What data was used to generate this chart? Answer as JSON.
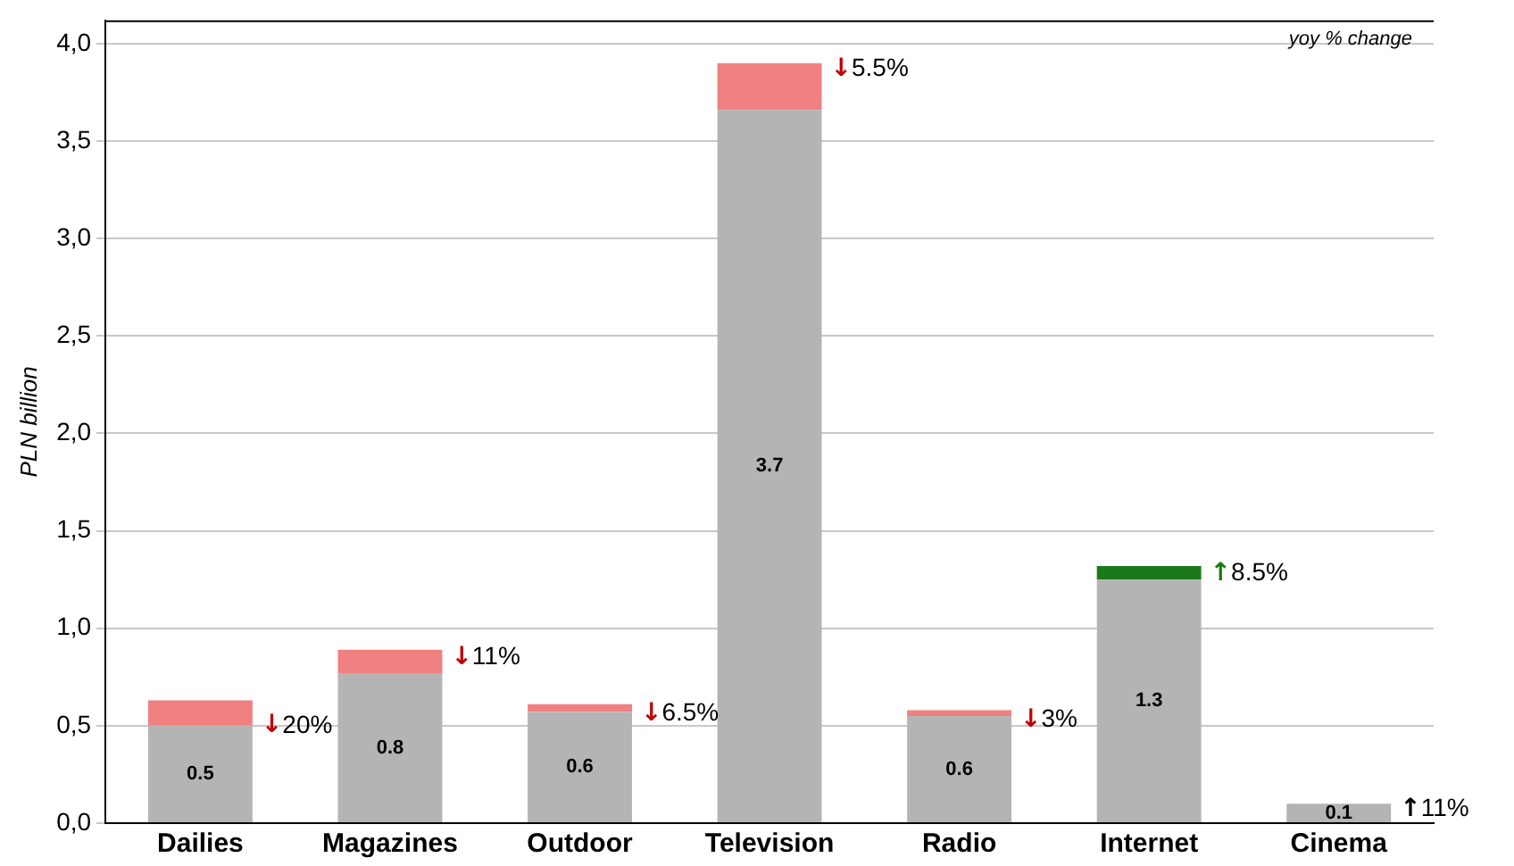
{
  "chart_data": {
    "type": "bar",
    "ylabel": "PLN billion",
    "stacked": true,
    "grid": "y",
    "legend": false,
    "categories": [
      "Dailies",
      "Magazines",
      "Outdoor",
      "Television",
      "Radio",
      "Internet",
      "Cinema"
    ],
    "series": [
      {
        "color": "#b4b4b4",
        "values": [
          0.5,
          0.77,
          0.57,
          3.66,
          0.55,
          1.25,
          0.1
        ],
        "value_labels": [
          "0.5",
          "0.8",
          "0.6",
          "3.7",
          "0.6",
          "1.3",
          "0.1"
        ]
      },
      {
        "color": "#f08080",
        "values": [
          0.13,
          0.12,
          0.04,
          0.24,
          0.03,
          null,
          null
        ]
      },
      {
        "color": "#1a7a1a",
        "values": [
          null,
          null,
          null,
          null,
          null,
          0.07,
          null
        ]
      }
    ],
    "ylim": [
      0,
      4.12
    ],
    "yticks": [
      {
        "value": 0,
        "label": "0,0"
      },
      {
        "value": 0.5,
        "label": "0,5"
      },
      {
        "value": 1,
        "label": "1,0"
      },
      {
        "value": 1.5,
        "label": "1,5"
      },
      {
        "value": 2,
        "label": "2,0"
      },
      {
        "value": 2.5,
        "label": "2,5"
      },
      {
        "value": 3,
        "label": "3,0"
      },
      {
        "value": 3.5,
        "label": "3,5"
      },
      {
        "value": 4,
        "label": "4,0"
      }
    ],
    "annotations": [
      "yoy % change",
      {
        "text": "↓20%",
        "x": "Dailies",
        "y": 0.5
      },
      {
        "text": "↓11%",
        "x": "Magazines",
        "y": 0.85
      },
      {
        "text": "↓6.5%",
        "x": "Outdoor",
        "y": 0.56
      },
      {
        "text": "↓5.5%",
        "x": "Television",
        "y": 3.87
      },
      {
        "text": "↓3%",
        "x": "Radio",
        "y": 0.53
      },
      {
        "text": "↑8.5%",
        "x": "Internet",
        "y": 1.28
      },
      {
        "text": "↑11%",
        "x": "Cinema",
        "y": 0.07
      }
    ]
  }
}
